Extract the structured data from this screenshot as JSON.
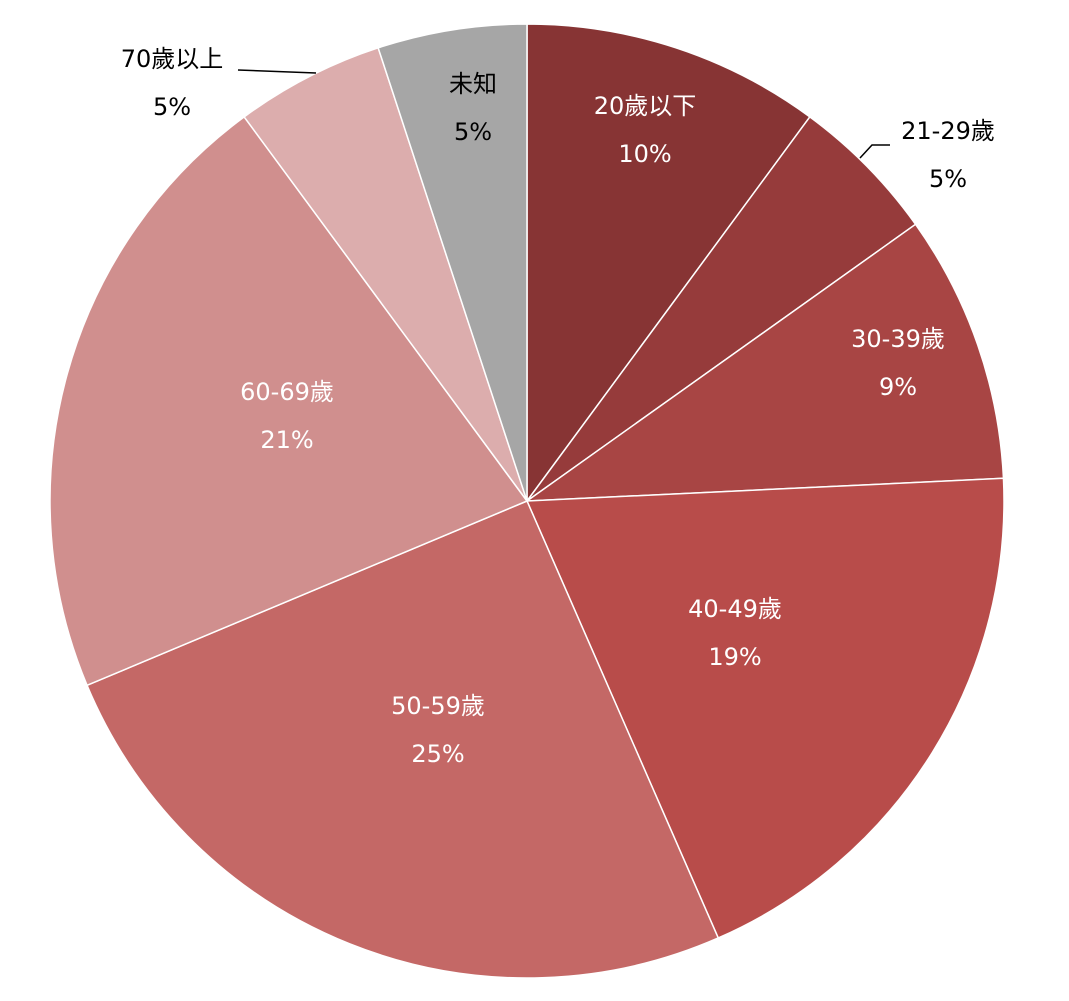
{
  "chart_data": {
    "type": "pie",
    "categories": [
      "20歲以下",
      "21-29歲",
      "30-39歲",
      "40-49歲",
      "50-59歲",
      "60-69歲",
      "70歲以上",
      "未知"
    ],
    "values": [
      10,
      5,
      9,
      19,
      25,
      21,
      5,
      5
    ],
    "value_labels": [
      "10%",
      "5%",
      "9%",
      "19%",
      "25%",
      "21%",
      "5%",
      "5%"
    ],
    "colors": [
      "#873434",
      "#963b3b",
      "#a84544",
      "#b84c4a",
      "#c46866",
      "#d08f8e",
      "#dcadad",
      "#a6a6a6"
    ]
  }
}
